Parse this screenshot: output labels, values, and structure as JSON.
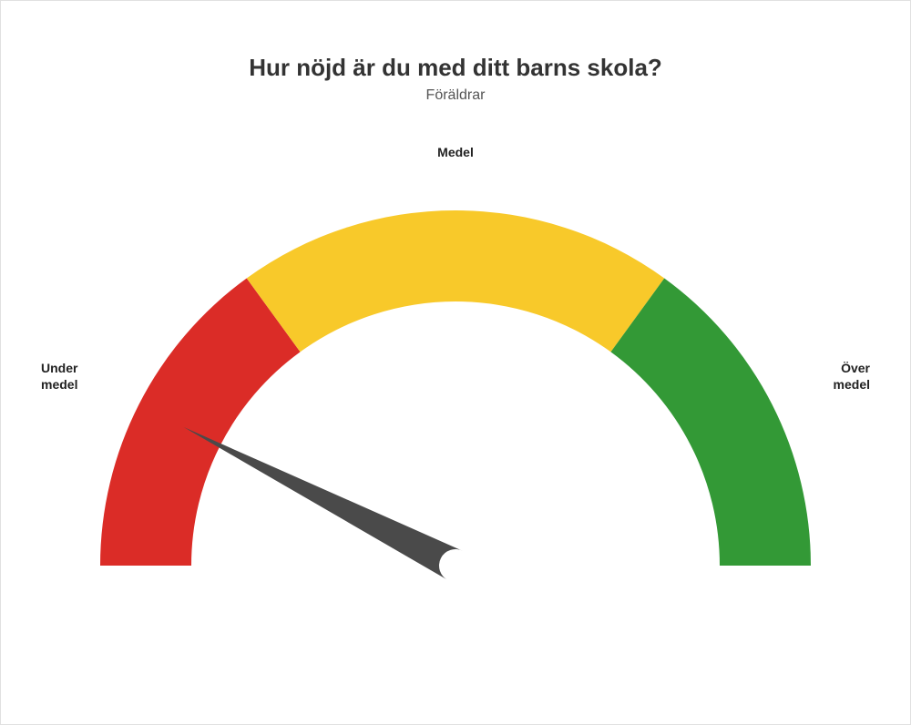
{
  "title": "Hur nöjd är du med ditt barns skola?",
  "subtitle": "Föräldrar",
  "gauge": {
    "type": "gauge",
    "value": 15,
    "min": 0,
    "max": 100,
    "segments": [
      {
        "from": 0,
        "to": 30,
        "color": "#db2c27",
        "label": "Under medel"
      },
      {
        "from": 30,
        "to": 70,
        "color": "#f8c92a",
        "label": "Medel"
      },
      {
        "from": 70,
        "to": 100,
        "color": "#339936",
        "label": "Över medel"
      }
    ],
    "outer_radius": 390,
    "inner_radius": 290,
    "needle_color": "#4a4a4a",
    "needle_length": 335,
    "needle_base_radius": 18,
    "background_color": "#ffffff",
    "title_fontsize": 26,
    "subtitle_fontsize": 16,
    "label_fontsize": 14,
    "label_fontweight": "bold",
    "label_color": "#222222"
  },
  "labels": {
    "left_line1": "Under",
    "left_line2": "medel",
    "top": "Medel",
    "right_line1": "Över",
    "right_line2": "medel"
  }
}
